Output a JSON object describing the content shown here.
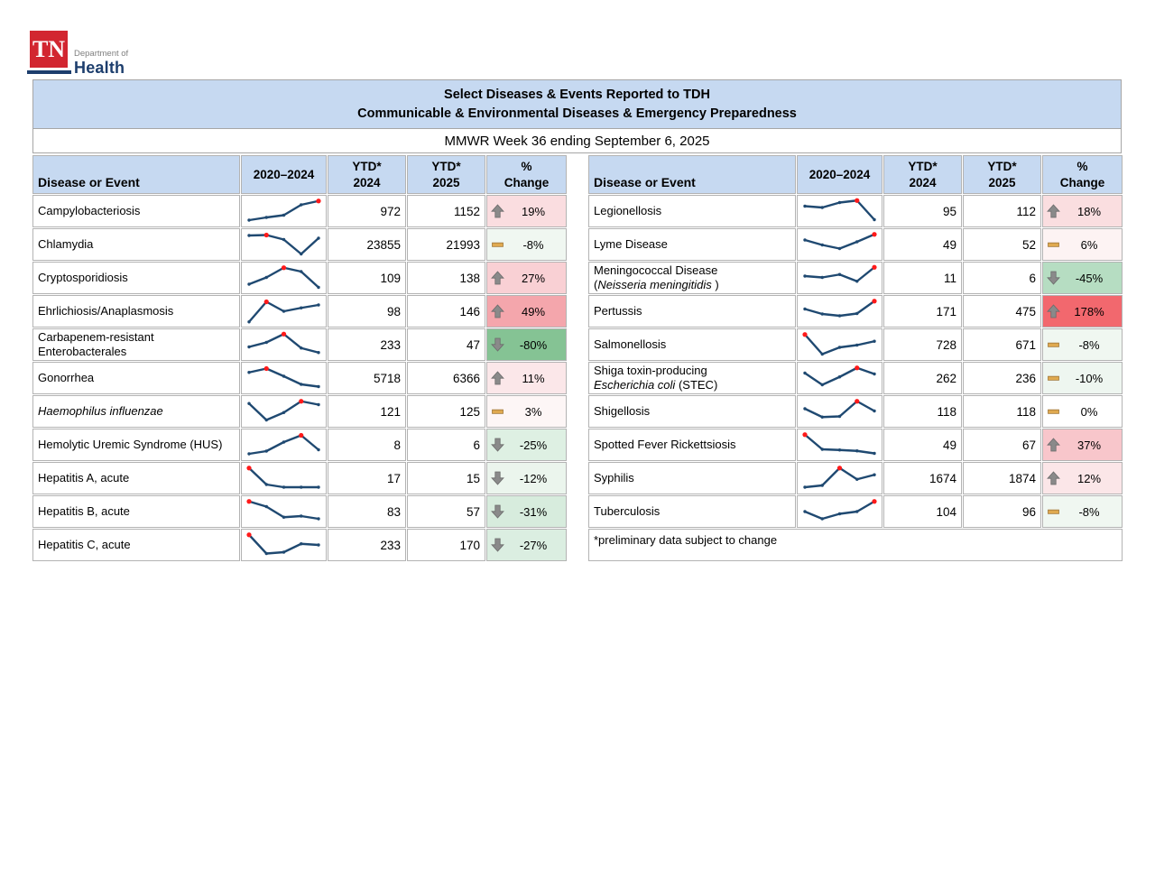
{
  "logo": {
    "tn": "TN",
    "dept": "Department of",
    "health": "Health"
  },
  "title": {
    "line1": "Select Diseases & Events Reported to TDH",
    "line2": "Communicable & Environmental Diseases & Emergency Preparedness"
  },
  "subtitle": "MMWR Week 36 ending September 6, 2025",
  "columns": {
    "disease": "Disease or Event",
    "trend": "2020–2024",
    "ytd2024_top": "YTD*",
    "ytd2024_bottom": "2024",
    "ytd2025_top": "YTD*",
    "ytd2025_bottom": "2025",
    "change_top": "%",
    "change_bottom": "Change"
  },
  "colors": {
    "header_bg": "#c6d9f1",
    "brand_red": "#d22630",
    "brand_navy": "#1d3e6d",
    "spark_line": "#1f4971",
    "spark_peak": "#ff1a1a",
    "arrow_gray": "#8a8a8a",
    "arrow_edge": "#6b6b6b",
    "dash_fill": "#dfa950",
    "dash_border": "#a2793a"
  },
  "tables": [
    {
      "id": "left",
      "footnote": null,
      "rows": [
        {
          "name_lines": [
            [
              {
                "t": "Campylobacteriosis"
              }
            ]
          ],
          "trend": [
            0.1,
            0.22,
            0.32,
            0.78,
            0.95
          ],
          "ytd_2024": "972",
          "ytd_2025": "1152",
          "indicator": "up",
          "change": "19%",
          "change_bg": "#fadde0"
        },
        {
          "name_lines": [
            [
              {
                "t": "Chlamydia"
              }
            ]
          ],
          "trend": [
            0.9,
            0.92,
            0.72,
            0.08,
            0.78
          ],
          "ytd_2024": "23855",
          "ytd_2025": "21993",
          "indicator": "flat",
          "change": "-8%",
          "change_bg": "#f0f7f1"
        },
        {
          "name_lines": [
            [
              {
                "t": "Cryptosporidiosis"
              }
            ]
          ],
          "trend": [
            0.22,
            0.52,
            0.95,
            0.78,
            0.08
          ],
          "ytd_2024": "109",
          "ytd_2025": "138",
          "indicator": "up",
          "change": "27%",
          "change_bg": "#f9d0d4"
        },
        {
          "name_lines": [
            [
              {
                "t": "Ehrlichiosis/Anaplasmosis"
              }
            ]
          ],
          "trend": [
            0.03,
            0.92,
            0.5,
            0.65,
            0.78
          ],
          "ytd_2024": "98",
          "ytd_2025": "146",
          "indicator": "up",
          "change": "49%",
          "change_bg": "#f4a6ac"
        },
        {
          "name_lines": [
            [
              {
                "t": "Carbapenem-resistant"
              }
            ],
            [
              {
                "t": "Enterobacterales"
              }
            ]
          ],
          "trend": [
            0.4,
            0.6,
            0.97,
            0.35,
            0.15
          ],
          "ytd_2024": "233",
          "ytd_2025": "47",
          "indicator": "down",
          "change": "-80%",
          "change_bg": "#85c394"
        },
        {
          "name_lines": [
            [
              {
                "t": "Gonorrhea"
              }
            ]
          ],
          "trend": [
            0.75,
            0.92,
            0.58,
            0.22,
            0.12
          ],
          "ytd_2024": "5718",
          "ytd_2025": "6366",
          "indicator": "up",
          "change": "11%",
          "change_bg": "#fbe7e9"
        },
        {
          "name_lines": [
            [
              {
                "t": "Haemophilus influenzae",
                "i": true
              }
            ]
          ],
          "trend": [
            0.85,
            0.12,
            0.45,
            0.95,
            0.8
          ],
          "ytd_2024": "121",
          "ytd_2025": "125",
          "indicator": "flat",
          "change": "3%",
          "change_bg": "#fdf6f6"
        },
        {
          "name_lines": [
            [
              {
                "t": "Hemolytic Uremic Syndrome (HUS)"
              }
            ]
          ],
          "trend": [
            0.1,
            0.22,
            0.62,
            0.92,
            0.28
          ],
          "ytd_2024": "8",
          "ytd_2025": "6",
          "indicator": "down",
          "change": "-25%",
          "change_bg": "#def0e3"
        },
        {
          "name_lines": [
            [
              {
                "t": "Hepatitis A, acute"
              }
            ]
          ],
          "trend": [
            0.95,
            0.22,
            0.1,
            0.1,
            0.1
          ],
          "ytd_2024": "17",
          "ytd_2025": "15",
          "indicator": "down",
          "change": "-12%",
          "change_bg": "#ebf5ed"
        },
        {
          "name_lines": [
            [
              {
                "t": "Hepatitis B, acute"
              }
            ]
          ],
          "trend": [
            0.95,
            0.72,
            0.25,
            0.3,
            0.18
          ],
          "ytd_2024": "83",
          "ytd_2025": "57",
          "indicator": "down",
          "change": "-31%",
          "change_bg": "#d7ecdd"
        },
        {
          "name_lines": [
            [
              {
                "t": "Hepatitis C, acute"
              }
            ]
          ],
          "trend": [
            0.95,
            0.12,
            0.18,
            0.55,
            0.5
          ],
          "ytd_2024": "233",
          "ytd_2025": "170",
          "indicator": "down",
          "change": "-27%",
          "change_bg": "#dbeee1"
        }
      ]
    },
    {
      "id": "right",
      "footnote": "*preliminary data subject to change",
      "rows": [
        {
          "name_lines": [
            [
              {
                "t": "Legionellosis"
              }
            ]
          ],
          "trend": [
            0.72,
            0.66,
            0.88,
            0.97,
            0.12
          ],
          "ytd_2024": "95",
          "ytd_2025": "112",
          "indicator": "up",
          "change": "18%",
          "change_bg": "#fadee0"
        },
        {
          "name_lines": [
            [
              {
                "t": "Lyme Disease"
              }
            ]
          ],
          "trend": [
            0.7,
            0.48,
            0.32,
            0.62,
            0.95
          ],
          "ytd_2024": "49",
          "ytd_2025": "52",
          "indicator": "flat",
          "change": "6%",
          "change_bg": "#fdf3f3"
        },
        {
          "name_lines": [
            [
              {
                "t": "Meningococcal Disease"
              }
            ],
            [
              {
                "t": "("
              },
              {
                "t": "Neisseria meningitidis",
                "i": true
              },
              {
                "t": " )"
              }
            ]
          ],
          "trend": [
            0.58,
            0.52,
            0.65,
            0.35,
            0.97
          ],
          "ytd_2024": "11",
          "ytd_2025": "6",
          "indicator": "down",
          "change": "-45%",
          "change_bg": "#b6ddc2"
        },
        {
          "name_lines": [
            [
              {
                "t": "Pertussis"
              }
            ]
          ],
          "trend": [
            0.6,
            0.38,
            0.3,
            0.4,
            0.95
          ],
          "ytd_2024": "171",
          "ytd_2025": "475",
          "indicator": "up",
          "change": "178%",
          "change_bg": "#f2686e"
        },
        {
          "name_lines": [
            [
              {
                "t": "Salmonellosis"
              }
            ]
          ],
          "trend": [
            0.95,
            0.08,
            0.38,
            0.48,
            0.65
          ],
          "ytd_2024": "728",
          "ytd_2025": "671",
          "indicator": "flat",
          "change": "-8%",
          "change_bg": "#f0f7f1"
        },
        {
          "name_lines": [
            [
              {
                "t": "Shiga toxin-producing"
              }
            ],
            [
              {
                "t": "Escherichia coli",
                "i": true
              },
              {
                "t": " (STEC)"
              }
            ]
          ],
          "trend": [
            0.72,
            0.2,
            0.55,
            0.95,
            0.68
          ],
          "ytd_2024": "262",
          "ytd_2025": "236",
          "indicator": "flat",
          "change": "-10%",
          "change_bg": "#eef6f0"
        },
        {
          "name_lines": [
            [
              {
                "t": "Shigellosis"
              }
            ]
          ],
          "trend": [
            0.62,
            0.25,
            0.28,
            0.95,
            0.52
          ],
          "ytd_2024": "118",
          "ytd_2025": "118",
          "indicator": "flat",
          "change": "0%",
          "change_bg": "#ffffff"
        },
        {
          "name_lines": [
            [
              {
                "t": "Spotted Fever Rickettsiosis"
              }
            ]
          ],
          "trend": [
            0.95,
            0.3,
            0.27,
            0.23,
            0.12
          ],
          "ytd_2024": "49",
          "ytd_2025": "67",
          "indicator": "up",
          "change": "37%",
          "change_bg": "#f8c6cb"
        },
        {
          "name_lines": [
            [
              {
                "t": "Syphilis"
              }
            ]
          ],
          "trend": [
            0.1,
            0.18,
            0.95,
            0.45,
            0.65
          ],
          "ytd_2024": "1674",
          "ytd_2025": "1874",
          "indicator": "up",
          "change": "12%",
          "change_bg": "#fbe6e8"
        },
        {
          "name_lines": [
            [
              {
                "t": "Tuberculosis"
              }
            ]
          ],
          "trend": [
            0.5,
            0.18,
            0.4,
            0.5,
            0.95
          ],
          "ytd_2024": "104",
          "ytd_2025": "96",
          "indicator": "flat",
          "change": "-8%",
          "change_bg": "#f0f7f1"
        }
      ]
    }
  ]
}
